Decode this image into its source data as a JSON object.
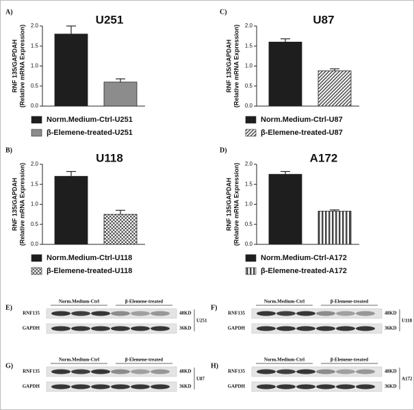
{
  "chart_data": [
    {
      "type": "bar",
      "panel": "A)",
      "title": "U251",
      "ylabel": [
        "RNF 135/GAPDAH",
        "(Relative mRNA Expression)"
      ],
      "ylim": [
        0,
        2
      ],
      "yticks": [
        {
          "value": 0,
          "label": "0.0"
        },
        0.5,
        {
          "value": 1,
          "label": "1.0"
        },
        1.5,
        {
          "value": 2,
          "label": "2.0"
        }
      ],
      "series": [
        {
          "name": "Norm.Medium-Ctrl-U251",
          "color": "#1e1e1e",
          "pattern": "solid",
          "values": [
            1.8
          ],
          "errors": [
            0.2
          ]
        },
        {
          "name": "β-Elemene-treated-U251",
          "color": "#8c8c8c",
          "pattern": "solid",
          "values": [
            0.6
          ],
          "errors": [
            0.08
          ]
        }
      ]
    },
    {
      "type": "bar",
      "panel": "C)",
      "title": "U87",
      "ylabel": [
        "RNF 135/GAPDAH",
        "(Relative mRNA Expression)"
      ],
      "ylim": [
        0,
        2
      ],
      "yticks": [
        {
          "value": 0,
          "label": "0.0"
        },
        0.5,
        {
          "value": 1,
          "label": "1.0"
        },
        1.5,
        {
          "value": 2,
          "label": "2.0"
        }
      ],
      "series": [
        {
          "name": "Norm.Medium-Ctrl-U87",
          "color": "#1e1e1e",
          "pattern": "solid",
          "values": [
            1.6
          ],
          "errors": [
            0.08
          ]
        },
        {
          "name": "β-Elemene-treated-U87",
          "color": "#555555",
          "pattern": "hatch",
          "values": [
            0.88
          ],
          "errors": [
            0.05
          ]
        }
      ]
    },
    {
      "type": "bar",
      "panel": "B)",
      "title": "U118",
      "ylabel": [
        "RNF 135/GAPDAH",
        "(Relative mRNA Expression)"
      ],
      "ylim": [
        0,
        2
      ],
      "yticks": [
        {
          "value": 0,
          "label": "0.0"
        },
        0.5,
        {
          "value": 1,
          "label": "1.0"
        },
        1.5,
        {
          "value": 2,
          "label": "2.0"
        }
      ],
      "series": [
        {
          "name": "Norm.Medium-Ctrl-U118",
          "color": "#1e1e1e",
          "pattern": "solid",
          "values": [
            1.7
          ],
          "errors": [
            0.12
          ]
        },
        {
          "name": "β-Elemene-treated-U118",
          "color": "#555555",
          "pattern": "check",
          "values": [
            0.75
          ],
          "errors": [
            0.1
          ]
        }
      ]
    },
    {
      "type": "bar",
      "panel": "D)",
      "title": "A172",
      "ylabel": [
        "RNF 135/GAPDAH",
        "(Relative mRNA Expression)"
      ],
      "ylim": [
        0,
        2
      ],
      "yticks": [
        {
          "value": 0,
          "label": "0.0"
        },
        0.5,
        {
          "value": 1,
          "label": "1.0"
        },
        1.5,
        {
          "value": 2,
          "label": "2.0"
        }
      ],
      "series": [
        {
          "name": "Norm.Medium-Ctrl-A172",
          "color": "#1e1e1e",
          "pattern": "solid",
          "values": [
            1.75
          ],
          "errors": [
            0.07
          ]
        },
        {
          "name": "β-Elemene-treated-A172",
          "color": "#444444",
          "pattern": "vstripe",
          "values": [
            0.83
          ],
          "errors": [
            0.03
          ]
        }
      ]
    }
  ],
  "blots": [
    {
      "panel": "E)",
      "groups": [
        "Norm.Medium-Ctrl",
        "β-Elemene-treated"
      ],
      "rows": [
        "RNF135",
        "GAPDH"
      ],
      "sizes": [
        "48KD",
        "36KD"
      ],
      "cell_line": "U251"
    },
    {
      "panel": "F)",
      "groups": [
        "Norm.Medium-Ctrl",
        "β-Elemene-treated"
      ],
      "rows": [
        "RNF135",
        "GAPDH"
      ],
      "sizes": [
        "48KD",
        "36KD"
      ],
      "cell_line": "U118"
    },
    {
      "panel": "G)",
      "groups": [
        "Norm.Medium-Ctrl",
        "β-Elemene-treated"
      ],
      "rows": [
        "RNF135",
        "GAPDH"
      ],
      "sizes": [
        "48KD",
        "36KD"
      ],
      "cell_line": "U87"
    },
    {
      "panel": "H)",
      "groups": [
        "Norm.Medium-Ctrl",
        "β-Elemene-treated"
      ],
      "rows": [
        "RNF135",
        "GAPDH"
      ],
      "sizes": [
        "48KD",
        "36KD"
      ],
      "cell_line": "A172"
    }
  ]
}
